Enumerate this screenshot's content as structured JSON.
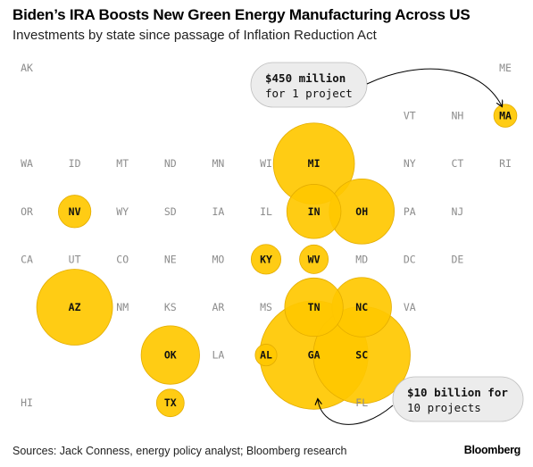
{
  "title": "Biden’s IRA Boosts New Green Energy Manufacturing Across US",
  "subtitle": "Investments by state since passage of Inflation Reduction Act",
  "source": "Sources: Jack Conness, energy policy analyst; Bloomberg research",
  "brand": "Bloomberg",
  "colors": {
    "bubble": "#FFC800",
    "bubble_stroke": "#E3AC00",
    "annotation_bg": "#ECECEC",
    "label": "#8C8C8C"
  },
  "annotations": [
    {
      "state": "MA",
      "lines": [
        "$450 million",
        "for 1 project"
      ]
    },
    {
      "state": "GA",
      "lines": [
        "$10 billion for",
        "10 projects"
      ]
    }
  ],
  "chart_data": {
    "type": "proportional-symbol tile map",
    "unit": "investment, $ billions (bubble area proportional; approximate)",
    "annotated_values": {
      "MA": {
        "investment_usd": "$450 million",
        "projects": 1
      },
      "GA": {
        "investment_usd": "$10 billion",
        "projects": 10
      }
    },
    "rows": [
      [
        "AK",
        "",
        "",
        "",
        "",
        "",
        "",
        "",
        "",
        "",
        "ME"
      ],
      [
        "",
        "",
        "",
        "",
        "",
        "",
        "",
        "",
        "VT",
        "NH",
        "MA"
      ],
      [
        "WA",
        "ID",
        "MT",
        "ND",
        "MN",
        "WI",
        "MI",
        "",
        "NY",
        "CT",
        "RI"
      ],
      [
        "OR",
        "NV",
        "WY",
        "SD",
        "IA",
        "IL",
        "IN",
        "OH",
        "PA",
        "NJ",
        ""
      ],
      [
        "CA",
        "UT",
        "CO",
        "NE",
        "MO",
        "KY",
        "WV",
        "MD",
        "DC",
        "DE",
        ""
      ],
      [
        "",
        "AZ",
        "NM",
        "KS",
        "AR",
        "MS",
        "TN",
        "NC",
        "VA",
        "",
        ""
      ],
      [
        "",
        "",
        "",
        "OK",
        "LA",
        "AL",
        "GA",
        "SC",
        "",
        "",
        ""
      ],
      [
        "HI",
        "",
        "",
        "TX",
        "",
        "",
        "",
        "FL",
        "",
        "",
        ""
      ]
    ],
    "values": {
      "MA": 0.45,
      "NV": 0.9,
      "MI": 5.6,
      "IN": 2.5,
      "OH": 3.6,
      "KY": 0.75,
      "WV": 0.7,
      "AZ": 4.9,
      "TN": 2.9,
      "NC": 3.0,
      "OK": 2.9,
      "AL": 0.4,
      "GA": 10.0,
      "SC": 8.0,
      "TX": 0.65
    }
  }
}
